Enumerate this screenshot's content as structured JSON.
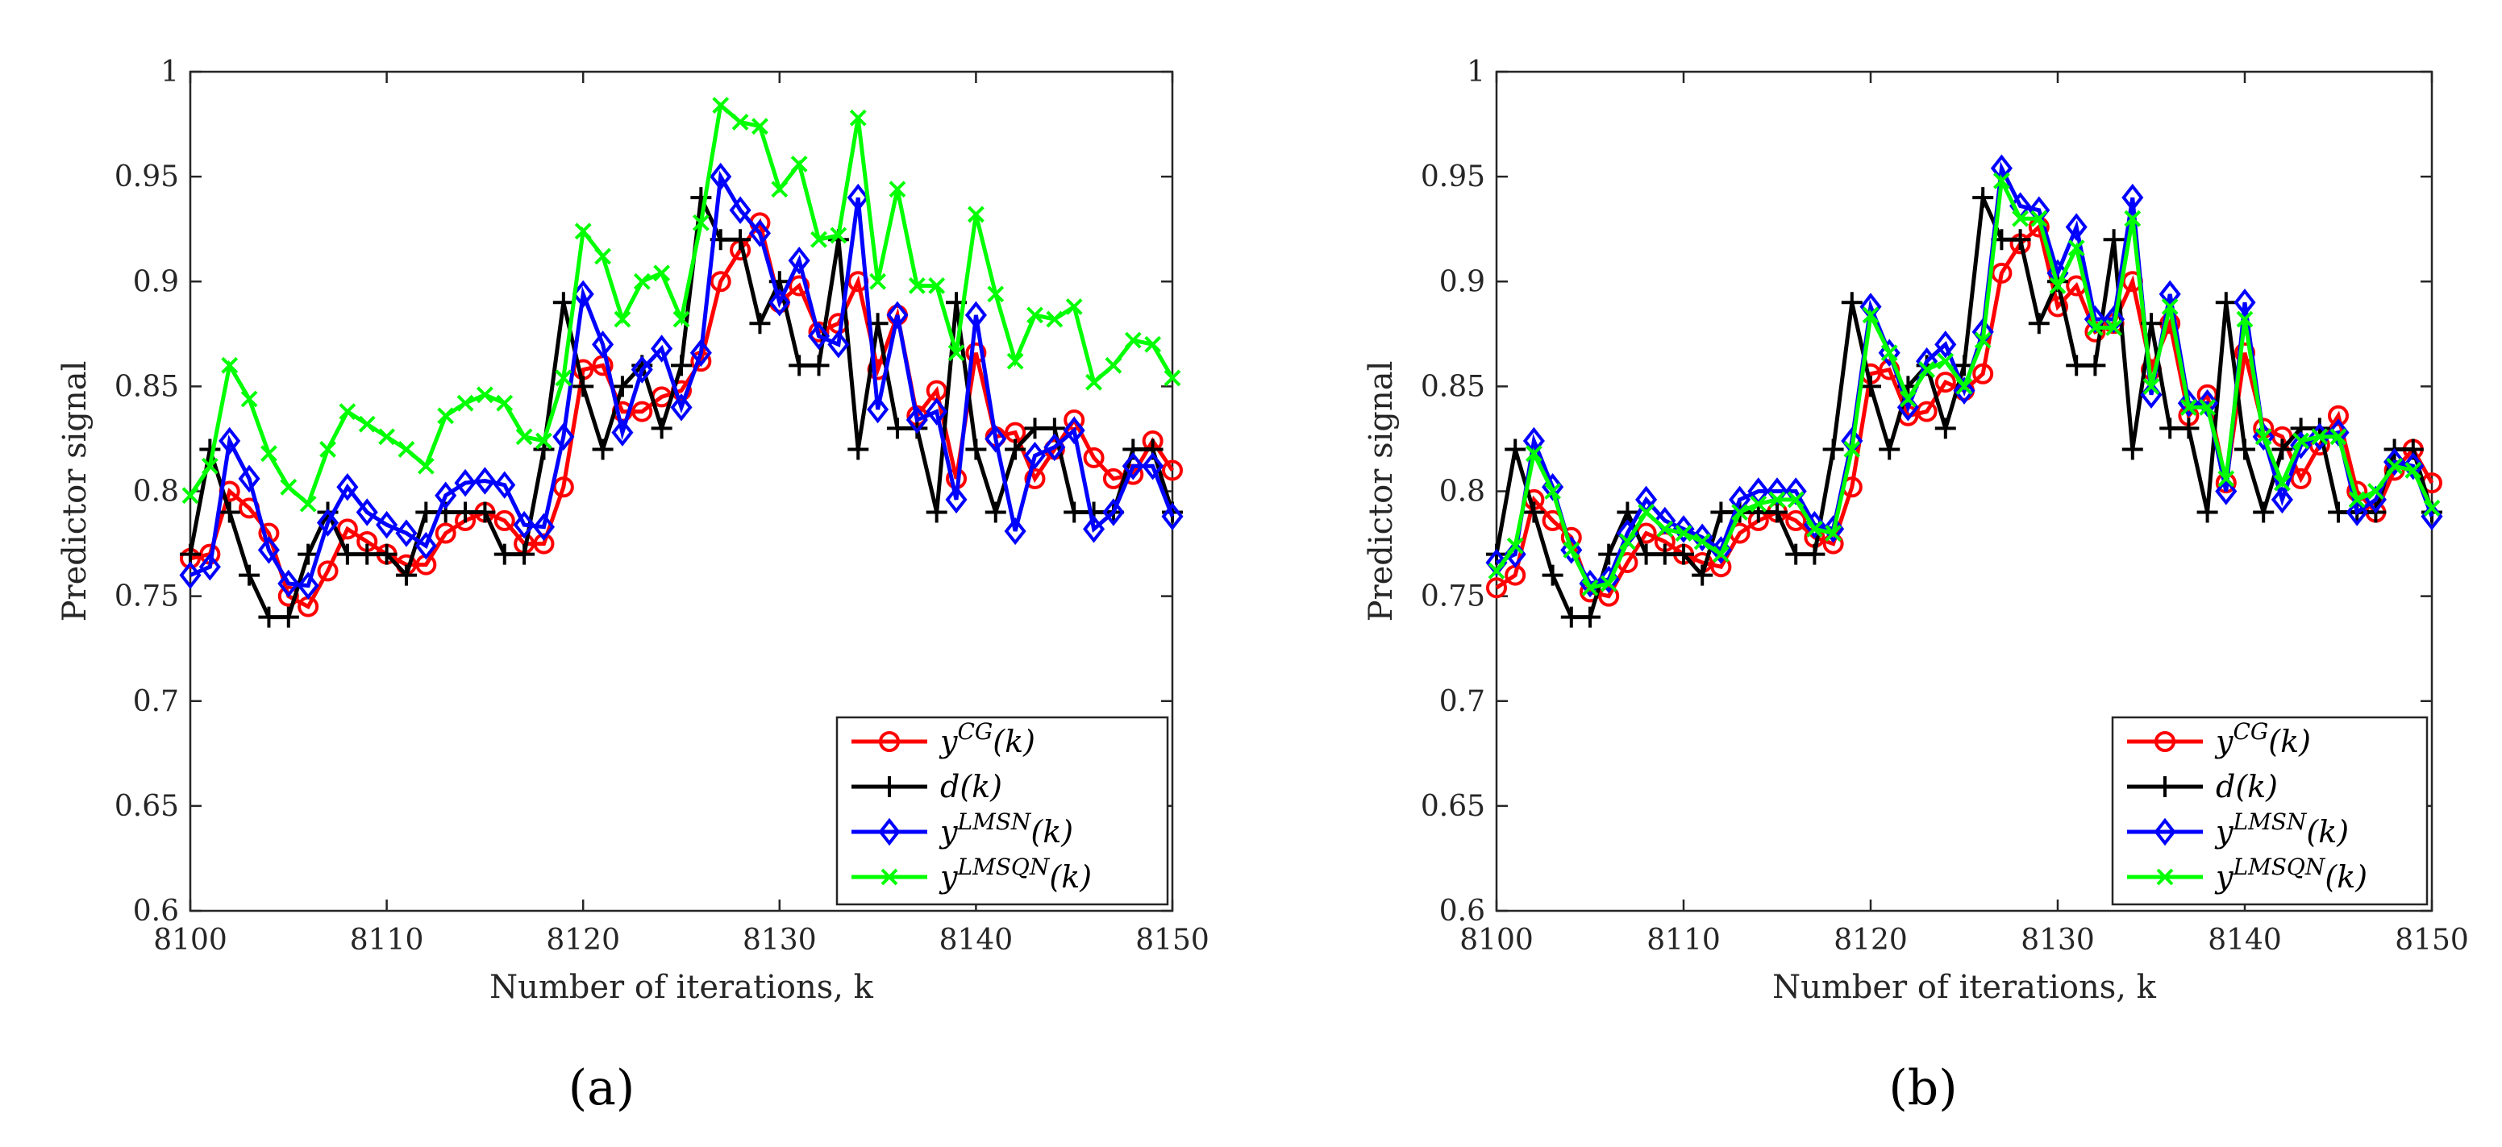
{
  "chart_data": [
    {
      "type": "line",
      "panel_label": "(a)",
      "title": "",
      "xlabel": "Number of iterations, k",
      "ylabel": "Predictor signal",
      "xlim": [
        8100,
        8150
      ],
      "ylim": [
        0.6,
        1.0
      ],
      "xticks": [
        "8100",
        "8110",
        "8120",
        "8130",
        "8140",
        "8150"
      ],
      "yticks": [
        "0.6",
        "0.65",
        "0.7",
        "0.75",
        "0.8",
        "0.85",
        "0.9",
        "0.95",
        "1"
      ],
      "grid": false,
      "legend_position": "bottom-right",
      "x": [
        8100,
        8101,
        8102,
        8103,
        8104,
        8105,
        8106,
        8107,
        8108,
        8109,
        8110,
        8111,
        8112,
        8113,
        8114,
        8115,
        8116,
        8117,
        8118,
        8119,
        8120,
        8121,
        8122,
        8123,
        8124,
        8125,
        8126,
        8127,
        8128,
        8129,
        8130,
        8131,
        8132,
        8133,
        8134,
        8135,
        8136,
        8137,
        8138,
        8139,
        8140,
        8141,
        8142,
        8143,
        8144,
        8145,
        8146,
        8147,
        8148,
        8149,
        8150
      ],
      "series": [
        {
          "name": "y^{CG}(k)",
          "legend": "yCG(k)",
          "color": "#ff0000",
          "marker": "circle",
          "values": [
            0.768,
            0.77,
            0.8,
            0.792,
            0.78,
            0.75,
            0.745,
            0.762,
            0.782,
            0.776,
            0.77,
            0.765,
            0.765,
            0.78,
            0.786,
            0.79,
            0.786,
            0.775,
            0.775,
            0.802,
            0.858,
            0.86,
            0.838,
            0.838,
            0.845,
            0.848,
            0.862,
            0.9,
            0.915,
            0.928,
            0.89,
            0.898,
            0.876,
            0.88,
            0.9,
            0.858,
            0.884,
            0.836,
            0.848,
            0.806,
            0.866,
            0.826,
            0.828,
            0.806,
            0.82,
            0.834,
            0.816,
            0.806,
            0.808,
            0.824,
            0.81
          ]
        },
        {
          "name": "d(k)",
          "legend": "d(k)",
          "color": "#000000",
          "marker": "plus",
          "values": [
            0.77,
            0.82,
            0.79,
            0.76,
            0.74,
            0.74,
            0.77,
            0.79,
            0.77,
            0.77,
            0.77,
            0.76,
            0.79,
            0.79,
            0.79,
            0.79,
            0.77,
            0.77,
            0.82,
            0.89,
            0.85,
            0.82,
            0.85,
            0.86,
            0.83,
            0.86,
            0.94,
            0.92,
            0.92,
            0.88,
            0.9,
            0.86,
            0.86,
            0.92,
            0.82,
            0.88,
            0.83,
            0.83,
            0.79,
            0.89,
            0.82,
            0.79,
            0.82,
            0.83,
            0.83,
            0.79,
            0.79,
            0.79,
            0.82,
            0.82,
            0.79
          ]
        },
        {
          "name": "y^{LMSN}(k)",
          "legend": "yLMSN(k)",
          "color": "#0000ff",
          "marker": "diamond",
          "values": [
            0.76,
            0.764,
            0.824,
            0.806,
            0.772,
            0.756,
            0.755,
            0.785,
            0.802,
            0.79,
            0.784,
            0.78,
            0.774,
            0.798,
            0.804,
            0.805,
            0.803,
            0.784,
            0.783,
            0.826,
            0.894,
            0.87,
            0.828,
            0.858,
            0.868,
            0.84,
            0.866,
            0.95,
            0.934,
            0.923,
            0.89,
            0.91,
            0.874,
            0.87,
            0.94,
            0.839,
            0.884,
            0.834,
            0.838,
            0.796,
            0.884,
            0.825,
            0.781,
            0.817,
            0.821,
            0.829,
            0.782,
            0.79,
            0.812,
            0.812,
            0.788
          ]
        },
        {
          "name": "y^{LMSQN}(k)",
          "legend": "yLMSQN(k)",
          "color": "#00ff00",
          "marker": "x",
          "values": [
            0.798,
            0.812,
            0.86,
            0.844,
            0.818,
            0.802,
            0.794,
            0.82,
            0.838,
            0.832,
            0.826,
            0.82,
            0.812,
            0.836,
            0.842,
            0.846,
            0.842,
            0.826,
            0.824,
            0.854,
            0.924,
            0.912,
            0.882,
            0.9,
            0.904,
            0.882,
            0.928,
            0.984,
            0.976,
            0.974,
            0.944,
            0.956,
            0.92,
            0.922,
            0.978,
            0.9,
            0.944,
            0.898,
            0.898,
            0.866,
            0.932,
            0.894,
            0.862,
            0.884,
            0.882,
            0.888,
            0.852,
            0.86,
            0.872,
            0.87,
            0.854
          ]
        }
      ]
    },
    {
      "type": "line",
      "panel_label": "(b)",
      "title": "",
      "xlabel": "Number of iterations, k",
      "ylabel": "Predictor signal",
      "xlim": [
        8100,
        8150
      ],
      "ylim": [
        0.6,
        1.0
      ],
      "xticks": [
        "8100",
        "8110",
        "8120",
        "8130",
        "8140",
        "8150"
      ],
      "yticks": [
        "0.6",
        "0.65",
        "0.7",
        "0.75",
        "0.8",
        "0.85",
        "0.9",
        "0.95",
        "1"
      ],
      "grid": false,
      "legend_position": "bottom-right",
      "x": [
        8100,
        8101,
        8102,
        8103,
        8104,
        8105,
        8106,
        8107,
        8108,
        8109,
        8110,
        8111,
        8112,
        8113,
        8114,
        8115,
        8116,
        8117,
        8118,
        8119,
        8120,
        8121,
        8122,
        8123,
        8124,
        8125,
        8126,
        8127,
        8128,
        8129,
        8130,
        8131,
        8132,
        8133,
        8134,
        8135,
        8136,
        8137,
        8138,
        8139,
        8140,
        8141,
        8142,
        8143,
        8144,
        8145,
        8146,
        8147,
        8148,
        8149,
        8150
      ],
      "series": [
        {
          "name": "y^{CG}(k)",
          "legend": "yCG(k)",
          "color": "#ff0000",
          "marker": "circle",
          "values": [
            0.754,
            0.76,
            0.796,
            0.786,
            0.778,
            0.752,
            0.75,
            0.766,
            0.78,
            0.776,
            0.77,
            0.766,
            0.764,
            0.78,
            0.786,
            0.79,
            0.786,
            0.778,
            0.775,
            0.802,
            0.856,
            0.858,
            0.836,
            0.838,
            0.852,
            0.848,
            0.856,
            0.904,
            0.918,
            0.926,
            0.888,
            0.898,
            0.876,
            0.88,
            0.9,
            0.858,
            0.88,
            0.836,
            0.846,
            0.804,
            0.866,
            0.83,
            0.826,
            0.806,
            0.822,
            0.836,
            0.8,
            0.79,
            0.81,
            0.82,
            0.804
          ]
        },
        {
          "name": "d(k)",
          "legend": "d(k)",
          "color": "#000000",
          "marker": "plus",
          "values": [
            0.77,
            0.82,
            0.79,
            0.76,
            0.74,
            0.74,
            0.77,
            0.79,
            0.77,
            0.77,
            0.77,
            0.76,
            0.79,
            0.79,
            0.79,
            0.79,
            0.77,
            0.77,
            0.82,
            0.89,
            0.85,
            0.82,
            0.85,
            0.86,
            0.83,
            0.86,
            0.94,
            0.92,
            0.92,
            0.88,
            0.9,
            0.86,
            0.86,
            0.92,
            0.82,
            0.88,
            0.83,
            0.83,
            0.79,
            0.89,
            0.82,
            0.79,
            0.82,
            0.83,
            0.83,
            0.79,
            0.79,
            0.79,
            0.82,
            0.82,
            0.79
          ]
        },
        {
          "name": "y^{LMSN}(k)",
          "legend": "yLMSN(k)",
          "color": "#0000ff",
          "marker": "diamond",
          "values": [
            0.766,
            0.77,
            0.824,
            0.802,
            0.772,
            0.756,
            0.758,
            0.78,
            0.796,
            0.786,
            0.782,
            0.778,
            0.772,
            0.796,
            0.8,
            0.8,
            0.8,
            0.784,
            0.782,
            0.824,
            0.888,
            0.866,
            0.84,
            0.862,
            0.87,
            0.848,
            0.876,
            0.954,
            0.936,
            0.934,
            0.904,
            0.926,
            0.882,
            0.882,
            0.94,
            0.846,
            0.894,
            0.842,
            0.842,
            0.8,
            0.89,
            0.826,
            0.796,
            0.822,
            0.826,
            0.828,
            0.79,
            0.796,
            0.814,
            0.812,
            0.788
          ]
        },
        {
          "name": "y^{LMSQN}(k)",
          "legend": "yLMSQN(k)",
          "color": "#00ff00",
          "marker": "x",
          "values": [
            0.762,
            0.774,
            0.818,
            0.8,
            0.772,
            0.754,
            0.756,
            0.776,
            0.79,
            0.782,
            0.78,
            0.776,
            0.77,
            0.79,
            0.794,
            0.796,
            0.796,
            0.782,
            0.78,
            0.82,
            0.884,
            0.866,
            0.844,
            0.858,
            0.862,
            0.85,
            0.872,
            0.948,
            0.93,
            0.93,
            0.898,
            0.916,
            0.878,
            0.878,
            0.93,
            0.85,
            0.888,
            0.84,
            0.84,
            0.806,
            0.882,
            0.826,
            0.804,
            0.824,
            0.826,
            0.826,
            0.796,
            0.8,
            0.812,
            0.81,
            0.792
          ]
        }
      ]
    }
  ]
}
